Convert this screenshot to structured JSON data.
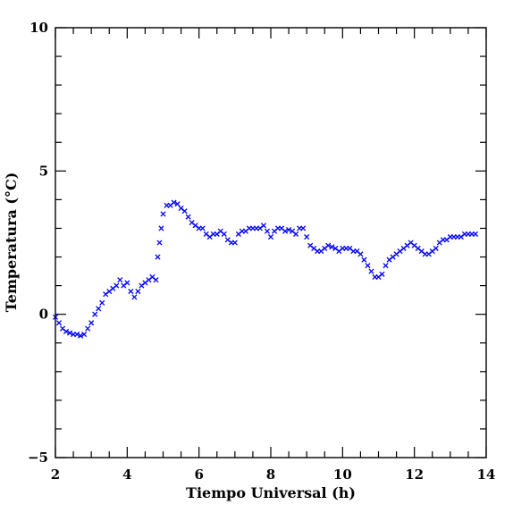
{
  "chart_data": {
    "type": "scatter",
    "marker": "x",
    "color": "#0000ff",
    "xlabel": "Tiempo Universal (h)",
    "ylabel": "Temperatura (°C)",
    "xlim": [
      2,
      14
    ],
    "ylim": [
      -5,
      10
    ],
    "x_ticks": [
      "2",
      "4",
      "6",
      "8",
      "10",
      "12",
      "14"
    ],
    "y_ticks": [
      "−5",
      "0",
      "5",
      "10"
    ],
    "grid": false,
    "series": [
      {
        "x": [
          2.0,
          2.1,
          2.2,
          2.3,
          2.4,
          2.5,
          2.6,
          2.7,
          2.8,
          2.9,
          3.0,
          3.1,
          3.2,
          3.3,
          3.4,
          3.5,
          3.6,
          3.7,
          3.8,
          3.9,
          4.0,
          4.1,
          4.2,
          4.3,
          4.4,
          4.5,
          4.6,
          4.7,
          4.8,
          4.85,
          4.9,
          4.95,
          5.0,
          5.1,
          5.2,
          5.3,
          5.4,
          5.5,
          5.6,
          5.7,
          5.8,
          5.9,
          6.0,
          6.1,
          6.2,
          6.3,
          6.4,
          6.5,
          6.6,
          6.7,
          6.8,
          6.9,
          7.0,
          7.1,
          7.2,
          7.3,
          7.4,
          7.5,
          7.6,
          7.7,
          7.8,
          7.9,
          8.0,
          8.1,
          8.2,
          8.3,
          8.4,
          8.5,
          8.6,
          8.7,
          8.8,
          8.9,
          9.0,
          9.1,
          9.2,
          9.3,
          9.4,
          9.5,
          9.6,
          9.7,
          9.8,
          9.9,
          10.0,
          10.1,
          10.2,
          10.3,
          10.4,
          10.5,
          10.6,
          10.7,
          10.8,
          10.9,
          11.0,
          11.1,
          11.2,
          11.3,
          11.4,
          11.5,
          11.6,
          11.7,
          11.8,
          11.9,
          12.0,
          12.1,
          12.2,
          12.3,
          12.4,
          12.5,
          12.6,
          12.7,
          12.8,
          12.9,
          13.0,
          13.1,
          13.2,
          13.3,
          13.4,
          13.5,
          13.6,
          13.7
        ],
        "y": [
          -0.1,
          -0.3,
          -0.5,
          -0.6,
          -0.65,
          -0.7,
          -0.7,
          -0.75,
          -0.7,
          -0.5,
          -0.3,
          0.0,
          0.2,
          0.4,
          0.7,
          0.8,
          0.9,
          1.0,
          1.2,
          1.0,
          1.1,
          0.8,
          0.6,
          0.8,
          1.0,
          1.1,
          1.2,
          1.3,
          1.2,
          2.0,
          2.5,
          3.0,
          3.5,
          3.8,
          3.8,
          3.9,
          3.85,
          3.7,
          3.6,
          3.4,
          3.2,
          3.1,
          3.0,
          3.0,
          2.8,
          2.7,
          2.8,
          2.8,
          2.9,
          2.8,
          2.6,
          2.5,
          2.5,
          2.8,
          2.9,
          2.9,
          3.0,
          3.0,
          3.0,
          3.0,
          3.1,
          2.9,
          2.7,
          2.9,
          3.0,
          3.0,
          2.9,
          2.95,
          2.9,
          2.8,
          3.0,
          3.0,
          2.7,
          2.4,
          2.3,
          2.2,
          2.2,
          2.3,
          2.4,
          2.35,
          2.3,
          2.2,
          2.3,
          2.3,
          2.3,
          2.2,
          2.2,
          2.1,
          1.9,
          1.7,
          1.5,
          1.3,
          1.3,
          1.4,
          1.7,
          1.9,
          2.0,
          2.1,
          2.2,
          2.3,
          2.4,
          2.5,
          2.4,
          2.3,
          2.2,
          2.1,
          2.1,
          2.2,
          2.3,
          2.5,
          2.6,
          2.6,
          2.7,
          2.7,
          2.7,
          2.7,
          2.8,
          2.8,
          2.8,
          2.8
        ]
      }
    ]
  }
}
